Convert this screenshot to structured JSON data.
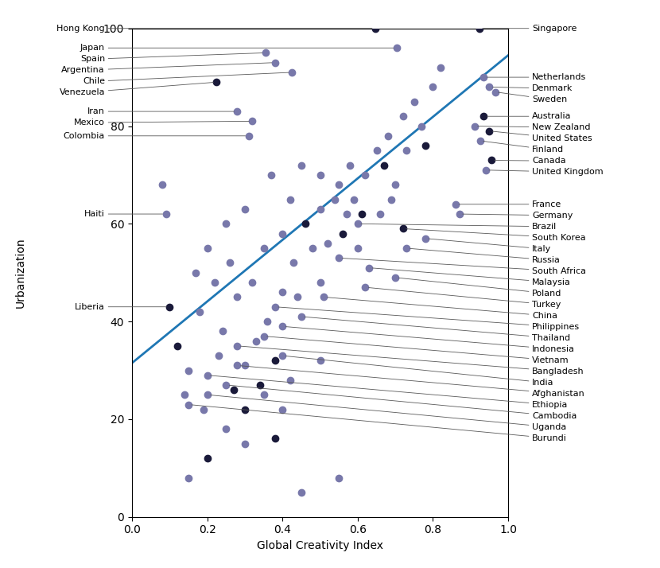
{
  "chart_data": {
    "type": "scatter",
    "xlabel": "Global Creativity Index",
    "ylabel": "Urbanization",
    "xlim": [
      0.0,
      1.0
    ],
    "ylim": [
      0,
      100
    ],
    "xticks": [
      0.0,
      0.2,
      0.4,
      0.6,
      0.8,
      1.0
    ],
    "yticks": [
      0,
      20,
      40,
      60,
      80,
      100
    ],
    "grid": false,
    "series": [
      {
        "color": "#1a1a3a",
        "x": [
          0.923,
          0.647,
          0.225,
          0.935,
          0.95,
          0.955,
          0.72,
          0.1,
          0.12,
          0.27,
          0.34,
          0.38,
          0.46,
          0.56,
          0.61,
          0.67,
          0.78,
          0.2,
          0.3,
          0.38
        ],
        "values": [
          100.0,
          100.0,
          89.0,
          82.0,
          79.0,
          73.0,
          59.0,
          43.0,
          35.0,
          26.0,
          27.0,
          32.0,
          60.0,
          58.0,
          62.0,
          72.0,
          76.0,
          12.0,
          22.0,
          16.0
        ]
      },
      {
        "color": "#7878aa",
        "x": [
          0.704,
          0.355,
          0.38,
          0.425,
          0.935,
          0.95,
          0.965,
          0.28,
          0.32,
          0.31,
          0.91,
          0.925,
          0.94,
          0.09,
          0.86,
          0.87,
          0.6,
          0.78,
          0.73,
          0.55,
          0.63,
          0.7,
          0.62,
          0.51,
          0.38,
          0.45,
          0.4,
          0.35,
          0.28,
          0.4,
          0.28,
          0.2,
          0.25,
          0.2,
          0.15,
          0.08,
          0.14,
          0.15,
          0.17,
          0.18,
          0.19,
          0.2,
          0.22,
          0.23,
          0.24,
          0.25,
          0.26,
          0.28,
          0.3,
          0.3,
          0.3,
          0.32,
          0.33,
          0.35,
          0.36,
          0.37,
          0.4,
          0.4,
          0.4,
          0.42,
          0.43,
          0.44,
          0.45,
          0.48,
          0.5,
          0.5,
          0.5,
          0.52,
          0.54,
          0.55,
          0.57,
          0.58,
          0.59,
          0.6,
          0.62,
          0.65,
          0.66,
          0.68,
          0.69,
          0.7,
          0.72,
          0.73,
          0.75,
          0.77,
          0.8,
          0.82,
          0.15,
          0.25,
          0.35,
          0.42,
          0.45,
          0.5,
          0.55
        ],
        "values": [
          96.0,
          95.0,
          93.0,
          91.0,
          90.0,
          88.0,
          87.0,
          83.0,
          81.0,
          78.0,
          80.0,
          77.0,
          71.0,
          62.0,
          64.0,
          62.0,
          60.0,
          57.0,
          55.0,
          53.0,
          51.0,
          49.0,
          47.0,
          45.0,
          43.0,
          41.0,
          39.0,
          37.0,
          35.0,
          33.0,
          31.0,
          29.0,
          27.0,
          25.0,
          23.0,
          68.0,
          25.0,
          30.0,
          50.0,
          42.0,
          22.0,
          55.0,
          48.0,
          33.0,
          38.0,
          60.0,
          52.0,
          45.0,
          15.0,
          31.0,
          63.0,
          48.0,
          36.0,
          55.0,
          40.0,
          70.0,
          22.0,
          46.0,
          58.0,
          65.0,
          52.0,
          45.0,
          72.0,
          55.0,
          48.0,
          63.0,
          70.0,
          56.0,
          65.0,
          68.0,
          62.0,
          72.0,
          65.0,
          55.0,
          70.0,
          75.0,
          62.0,
          78.0,
          65.0,
          68.0,
          82.0,
          75.0,
          85.0,
          80.0,
          88.0,
          92.0,
          8.0,
          18.0,
          25.0,
          28.0,
          5.0,
          32.0,
          8.0
        ]
      },
      {
        "type": "line",
        "x": [
          0.0,
          1.0
        ],
        "values": [
          31.5,
          94.5
        ]
      }
    ],
    "annotations": [
      {
        "text": "Singapore",
        "x": 0.923,
        "y": 100.0
      },
      {
        "text": "Hong Kong",
        "x": 0.647,
        "y": 100.0
      },
      {
        "text": "Japan",
        "x": 0.704,
        "y": 96.0
      },
      {
        "text": "Spain",
        "x": 0.355,
        "y": 95.0
      },
      {
        "text": "Argentina",
        "x": 0.38,
        "y": 93.0
      },
      {
        "text": "Chile",
        "x": 0.425,
        "y": 91.0
      },
      {
        "text": "Venezuela",
        "x": 0.225,
        "y": 89.0
      },
      {
        "text": "Netherlands",
        "x": 0.935,
        "y": 90.0
      },
      {
        "text": "Denmark",
        "x": 0.95,
        "y": 88.0
      },
      {
        "text": "Sweden",
        "x": 0.965,
        "y": 87.0
      },
      {
        "text": "Iran",
        "x": 0.28,
        "y": 83.0
      },
      {
        "text": "Mexico",
        "x": 0.32,
        "y": 81.0
      },
      {
        "text": "Colombia",
        "x": 0.31,
        "y": 78.0
      },
      {
        "text": "Australia",
        "x": 0.935,
        "y": 82.0
      },
      {
        "text": "New Zealand",
        "x": 0.91,
        "y": 80.0
      },
      {
        "text": "United States",
        "x": 0.95,
        "y": 79.0
      },
      {
        "text": "Finland",
        "x": 0.925,
        "y": 77.0
      },
      {
        "text": "Canada",
        "x": 0.955,
        "y": 73.0
      },
      {
        "text": "United Kingdom",
        "x": 0.94,
        "y": 71.0
      },
      {
        "text": "Haiti",
        "x": 0.09,
        "y": 62.0
      },
      {
        "text": "France",
        "x": 0.86,
        "y": 64.0
      },
      {
        "text": "Germany",
        "x": 0.87,
        "y": 62.0
      },
      {
        "text": "Brazil",
        "x": 0.6,
        "y": 60.0
      },
      {
        "text": "South Korea",
        "x": 0.72,
        "y": 59.0
      },
      {
        "text": "Italy",
        "x": 0.78,
        "y": 57.0
      },
      {
        "text": "Russia",
        "x": 0.73,
        "y": 55.0
      },
      {
        "text": "South Africa",
        "x": 0.55,
        "y": 53.0
      },
      {
        "text": "Malaysia",
        "x": 0.63,
        "y": 51.0
      },
      {
        "text": "Poland",
        "x": 0.7,
        "y": 49.0
      },
      {
        "text": "Turkey",
        "x": 0.62,
        "y": 47.0
      },
      {
        "text": "China",
        "x": 0.51,
        "y": 45.0
      },
      {
        "text": "Philippines",
        "x": 0.38,
        "y": 43.0
      },
      {
        "text": "Thailand",
        "x": 0.45,
        "y": 41.0
      },
      {
        "text": "Indonesia",
        "x": 0.4,
        "y": 39.0
      },
      {
        "text": "Vietnam",
        "x": 0.35,
        "y": 37.0
      },
      {
        "text": "Bangladesh",
        "x": 0.28,
        "y": 35.0
      },
      {
        "text": "India",
        "x": 0.4,
        "y": 33.0
      },
      {
        "text": "Afghanistan",
        "x": 0.28,
        "y": 31.0
      },
      {
        "text": "Ethiopia",
        "x": 0.2,
        "y": 29.0
      },
      {
        "text": "Cambodia",
        "x": 0.25,
        "y": 27.0
      },
      {
        "text": "Uganda",
        "x": 0.2,
        "y": 25.0
      },
      {
        "text": "Burundi",
        "x": 0.15,
        "y": 23.0
      },
      {
        "text": "Liberia",
        "x": 0.1,
        "y": 43.0
      }
    ]
  }
}
